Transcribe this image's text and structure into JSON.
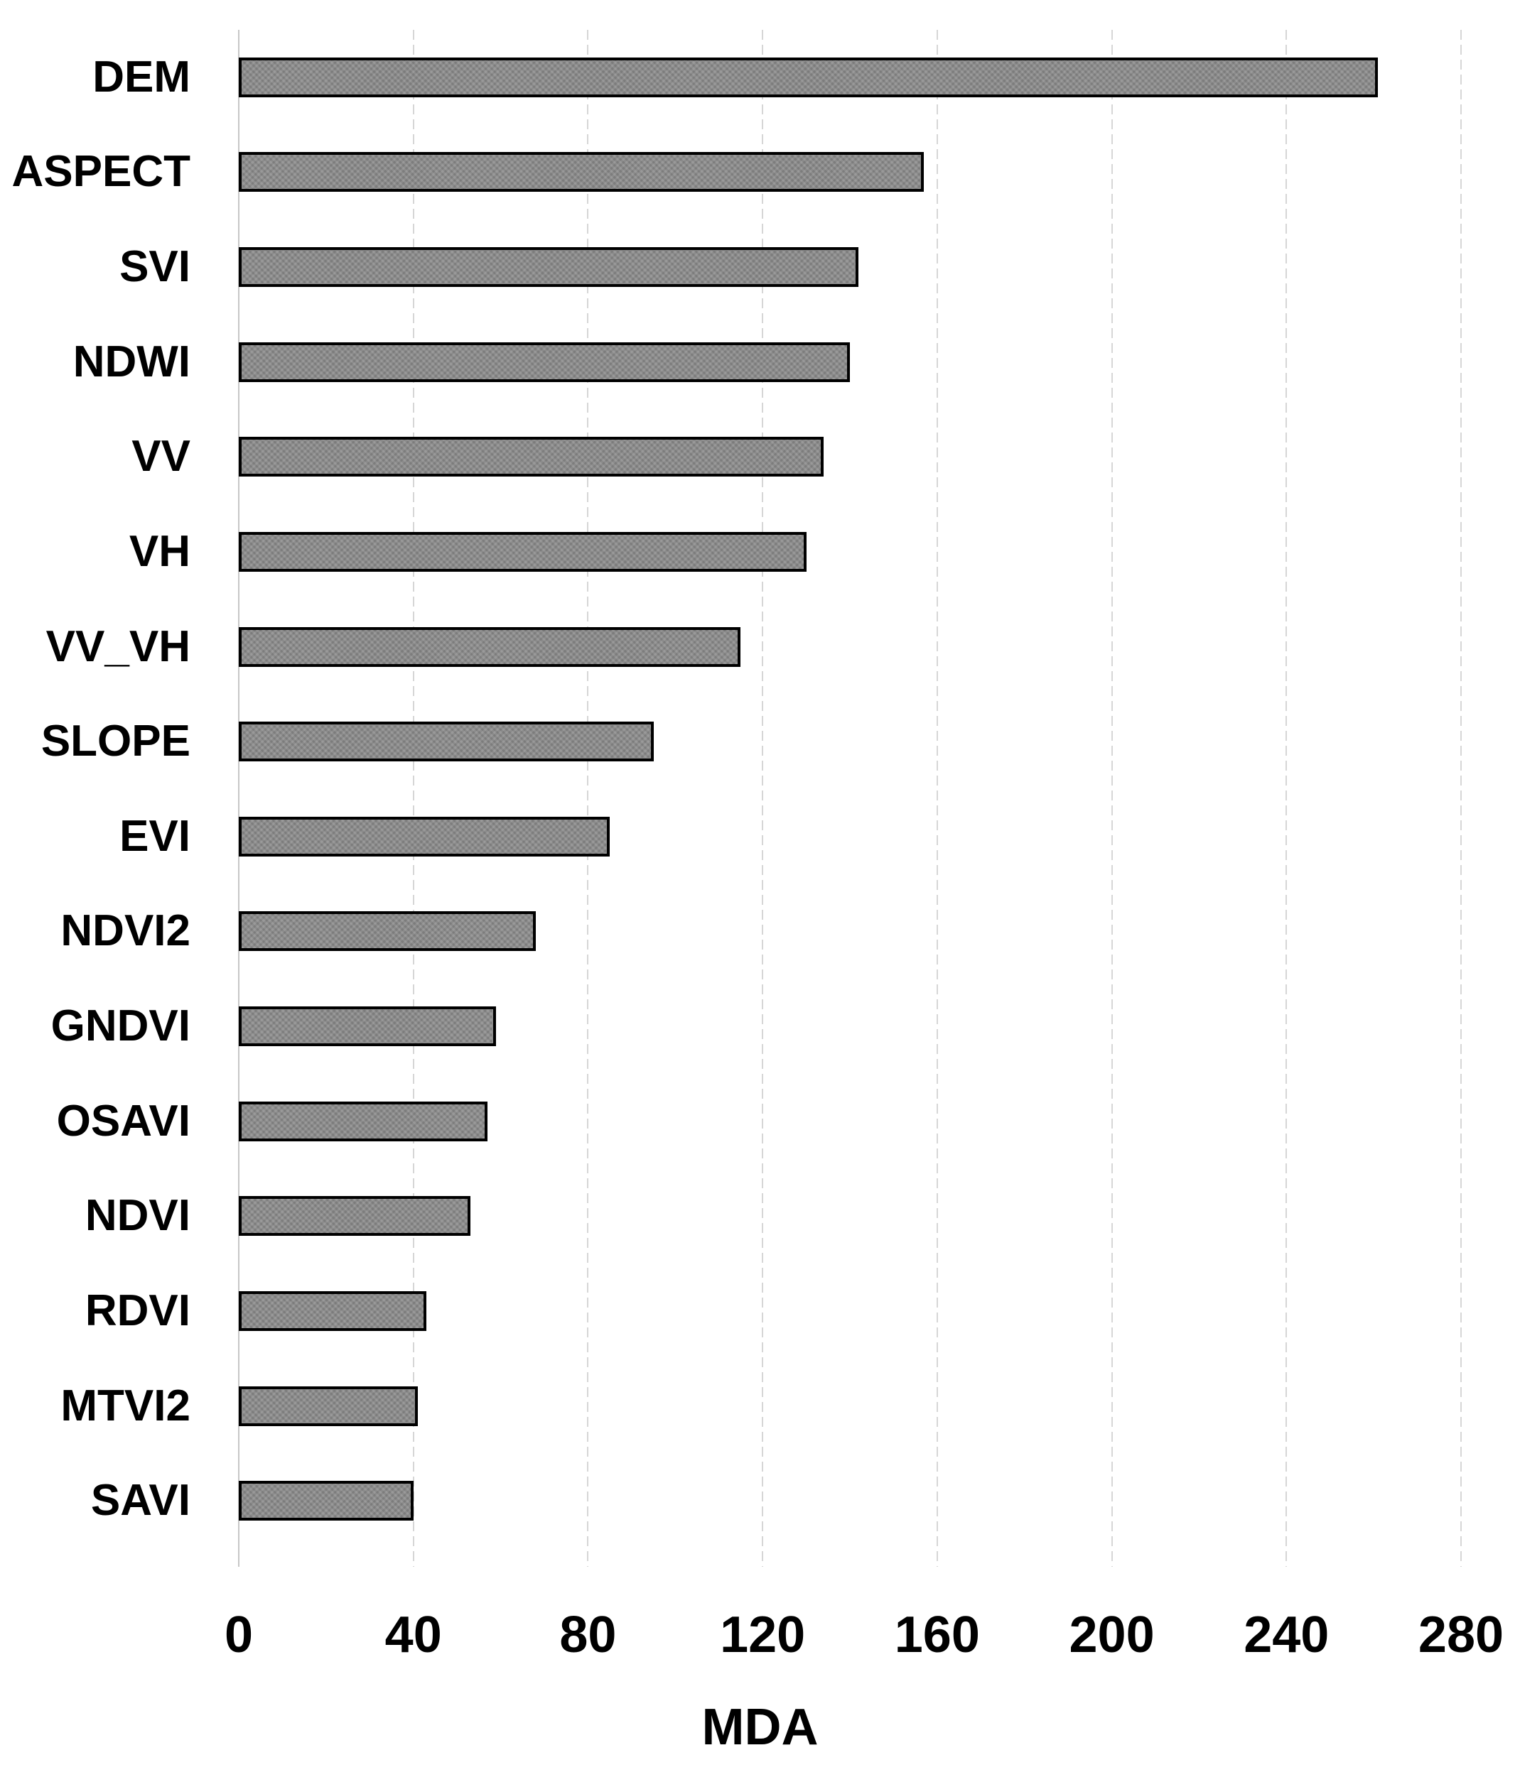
{
  "chart_data": {
    "type": "bar",
    "orientation": "horizontal",
    "title": "",
    "xlabel": "MDA",
    "ylabel": "",
    "categories": [
      "DEM",
      "ASPECT",
      "SVI",
      "NDWI",
      "VV",
      "VH",
      "VV_VH",
      "SLOPE",
      "EVI",
      "NDVI2",
      "GNDVI",
      "OSAVI",
      "NDVI",
      "RDVI",
      "MTVI2",
      "SAVI"
    ],
    "values": [
      261,
      157,
      142,
      140,
      134,
      130,
      115,
      95,
      85,
      68,
      59,
      57,
      53,
      43,
      41,
      40
    ],
    "xlim": [
      0,
      280
    ],
    "xticks": [
      0,
      40,
      80,
      120,
      160,
      200,
      240,
      280
    ],
    "grid": true,
    "legend": "none",
    "colors": {
      "bar_fill": "#8a8a8a",
      "bar_border": "#000000",
      "gridline": "#d6d6d6",
      "axis_line": "#c6c6c6",
      "text": "#000000",
      "background": "#ffffff"
    }
  }
}
